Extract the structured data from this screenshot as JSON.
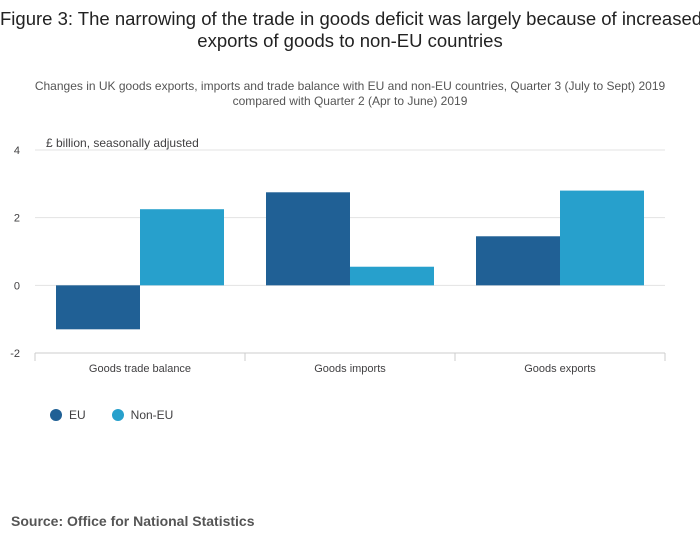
{
  "title_lines": [
    "Figure 3: The narrowing of the trade in goods deficit was largely because of increased",
    "exports of goods to non-EU countries"
  ],
  "subtitle": "Changes in UK goods exports, imports and trade balance with EU and non-EU countries, Quarter 3 (July to Sept) 2019 compared with Quarter 2 (Apr to June) 2019",
  "source": "Source: Office for National Statistics",
  "chart_data": {
    "type": "bar",
    "title": "Figure 3: The narrowing of the trade in goods deficit was largely because of increased exports of goods to non-EU countries",
    "subtitle": "Changes in UK goods exports, imports and trade balance with EU and non-EU countries, Quarter 3 (July to Sept) 2019 compared with Quarter 2 (Apr to June) 2019",
    "ylabel": "£ billion, seasonally adjusted",
    "xlabel": "",
    "categories": [
      "Goods trade balance",
      "Goods imports",
      "Goods exports"
    ],
    "series": [
      {
        "name": "EU",
        "color": "#206095",
        "values": [
          -1.3,
          2.75,
          1.45
        ]
      },
      {
        "name": "Non-EU",
        "color": "#27a0cc",
        "values": [
          2.25,
          0.55,
          2.8
        ]
      }
    ],
    "ylim": [
      -2,
      4
    ],
    "yticks": [
      -2,
      0,
      2,
      4
    ],
    "grid": true,
    "legend_position": "bottom-left"
  }
}
